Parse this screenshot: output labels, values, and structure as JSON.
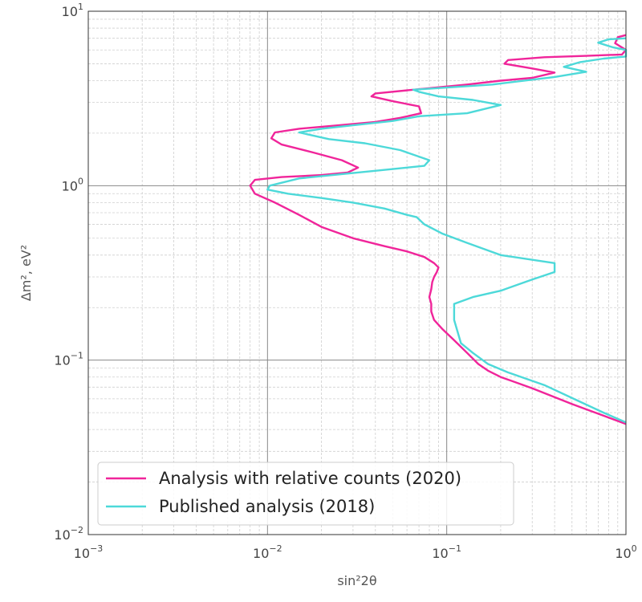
{
  "chart_data": {
    "type": "line",
    "xscale": "log",
    "yscale": "log",
    "xlim": [
      0.001,
      1
    ],
    "ylim": [
      0.01,
      10
    ],
    "xlabel": "sin²2θ",
    "ylabel": "Δm², eV²",
    "x_ticks": [
      {
        "value": 0.001,
        "base": "10",
        "exp": "−3"
      },
      {
        "value": 0.01,
        "base": "10",
        "exp": "−2"
      },
      {
        "value": 0.1,
        "base": "10",
        "exp": "−1"
      },
      {
        "value": 1,
        "base": "10",
        "exp": "0"
      }
    ],
    "y_ticks": [
      {
        "value": 0.01,
        "base": "10",
        "exp": "−2"
      },
      {
        "value": 0.1,
        "base": "10",
        "exp": "−1"
      },
      {
        "value": 1,
        "base": "10",
        "exp": "0"
      },
      {
        "value": 10,
        "base": "10",
        "exp": "1"
      }
    ],
    "grid": true,
    "legend_position": "lower-left",
    "series": [
      {
        "name": "Analysis with relative counts (2020)",
        "color": "#f0259a",
        "points": [
          [
            1.0,
            0.043
          ],
          [
            0.75,
            0.048
          ],
          [
            0.5,
            0.056
          ],
          [
            0.3,
            0.069
          ],
          [
            0.2,
            0.08
          ],
          [
            0.17,
            0.087
          ],
          [
            0.15,
            0.095
          ],
          [
            0.13,
            0.11
          ],
          [
            0.11,
            0.13
          ],
          [
            0.095,
            0.15
          ],
          [
            0.085,
            0.17
          ],
          [
            0.082,
            0.19
          ],
          [
            0.082,
            0.21
          ],
          [
            0.08,
            0.23
          ],
          [
            0.082,
            0.255
          ],
          [
            0.083,
            0.28
          ],
          [
            0.085,
            0.3
          ],
          [
            0.088,
            0.32
          ],
          [
            0.09,
            0.34
          ],
          [
            0.085,
            0.36
          ],
          [
            0.075,
            0.39
          ],
          [
            0.06,
            0.42
          ],
          [
            0.045,
            0.45
          ],
          [
            0.03,
            0.5
          ],
          [
            0.02,
            0.58
          ],
          [
            0.015,
            0.68
          ],
          [
            0.011,
            0.8
          ],
          [
            0.0085,
            0.9
          ],
          [
            0.008,
            1.0
          ],
          [
            0.0085,
            1.08
          ],
          [
            0.012,
            1.12
          ],
          [
            0.02,
            1.15
          ],
          [
            0.028,
            1.19
          ],
          [
            0.032,
            1.27
          ],
          [
            0.026,
            1.4
          ],
          [
            0.018,
            1.55
          ],
          [
            0.012,
            1.72
          ],
          [
            0.0105,
            1.87
          ],
          [
            0.011,
            2.02
          ],
          [
            0.015,
            2.12
          ],
          [
            0.025,
            2.22
          ],
          [
            0.04,
            2.32
          ],
          [
            0.055,
            2.45
          ],
          [
            0.072,
            2.6
          ],
          [
            0.07,
            2.85
          ],
          [
            0.05,
            3.05
          ],
          [
            0.038,
            3.25
          ],
          [
            0.04,
            3.38
          ],
          [
            0.065,
            3.55
          ],
          [
            0.13,
            3.8
          ],
          [
            0.2,
            4.0
          ],
          [
            0.3,
            4.15
          ],
          [
            0.4,
            4.45
          ],
          [
            0.3,
            4.7
          ],
          [
            0.21,
            5.0
          ],
          [
            0.22,
            5.25
          ],
          [
            0.35,
            5.45
          ],
          [
            0.6,
            5.55
          ],
          [
            0.95,
            5.65
          ],
          [
            1.0,
            6.0
          ],
          [
            0.87,
            6.55
          ],
          [
            0.9,
            7.1
          ],
          [
            1.0,
            7.3
          ]
        ]
      },
      {
        "name": "Published analysis (2018)",
        "color": "#4dd9d9",
        "points": [
          [
            1.0,
            0.044
          ],
          [
            0.75,
            0.05
          ],
          [
            0.55,
            0.058
          ],
          [
            0.35,
            0.072
          ],
          [
            0.22,
            0.085
          ],
          [
            0.17,
            0.095
          ],
          [
            0.14,
            0.11
          ],
          [
            0.12,
            0.125
          ],
          [
            0.11,
            0.17
          ],
          [
            0.11,
            0.21
          ],
          [
            0.14,
            0.23
          ],
          [
            0.2,
            0.25
          ],
          [
            0.3,
            0.29
          ],
          [
            0.4,
            0.32
          ],
          [
            0.4,
            0.36
          ],
          [
            0.2,
            0.4
          ],
          [
            0.13,
            0.47
          ],
          [
            0.095,
            0.53
          ],
          [
            0.075,
            0.6
          ],
          [
            0.068,
            0.66
          ],
          [
            0.06,
            0.68
          ],
          [
            0.045,
            0.74
          ],
          [
            0.03,
            0.8
          ],
          [
            0.02,
            0.85
          ],
          [
            0.013,
            0.9
          ],
          [
            0.01,
            0.95
          ],
          [
            0.0103,
            1.0
          ],
          [
            0.015,
            1.1
          ],
          [
            0.035,
            1.2
          ],
          [
            0.06,
            1.27
          ],
          [
            0.075,
            1.3
          ],
          [
            0.08,
            1.4
          ],
          [
            0.055,
            1.6
          ],
          [
            0.035,
            1.75
          ],
          [
            0.022,
            1.85
          ],
          [
            0.015,
            2.02
          ],
          [
            0.02,
            2.12
          ],
          [
            0.03,
            2.22
          ],
          [
            0.05,
            2.35
          ],
          [
            0.07,
            2.5
          ],
          [
            0.13,
            2.6
          ],
          [
            0.2,
            2.9
          ],
          [
            0.14,
            3.1
          ],
          [
            0.09,
            3.25
          ],
          [
            0.07,
            3.45
          ],
          [
            0.065,
            3.55
          ],
          [
            0.18,
            3.8
          ],
          [
            0.4,
            4.2
          ],
          [
            0.6,
            4.5
          ],
          [
            0.45,
            4.8
          ],
          [
            0.55,
            5.1
          ],
          [
            0.75,
            5.35
          ],
          [
            1.0,
            5.5
          ],
          [
            1.0,
            6.0
          ],
          [
            0.85,
            6.2
          ],
          [
            0.7,
            6.6
          ],
          [
            0.8,
            6.9
          ],
          [
            1.0,
            7.0
          ]
        ]
      }
    ]
  }
}
